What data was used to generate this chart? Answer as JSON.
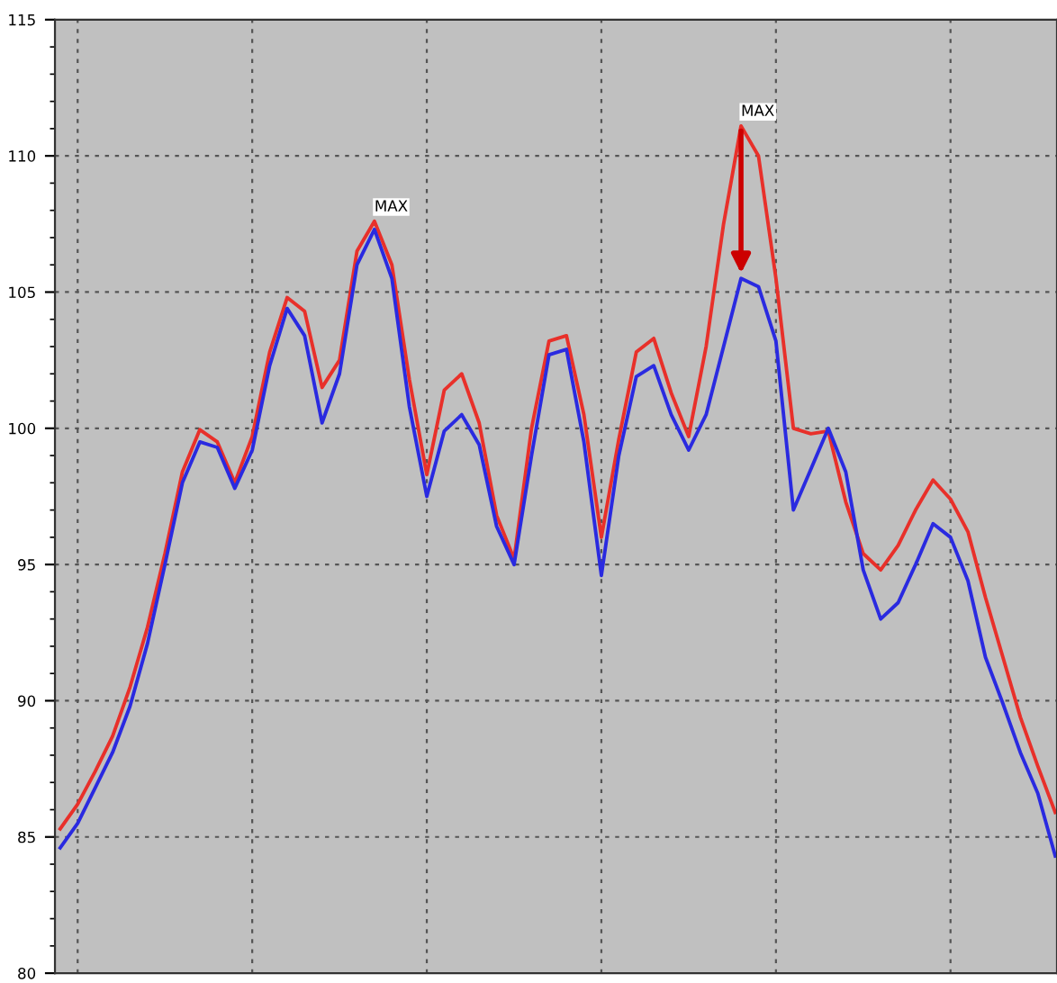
{
  "chart_data": {
    "type": "line",
    "categories": [
      null,
      null,
      null,
      null,
      null,
      null,
      null,
      null,
      null,
      null,
      null,
      null,
      null,
      null,
      null,
      null,
      null,
      null,
      null,
      null,
      null,
      null,
      null,
      null,
      null,
      null,
      null,
      null,
      null,
      null,
      null,
      null,
      null,
      null,
      null,
      null,
      null,
      null,
      null,
      null,
      null,
      null,
      null,
      null,
      null,
      null,
      null,
      null,
      null,
      null,
      null,
      null,
      null,
      null,
      null,
      null,
      null,
      null
    ],
    "series": [
      {
        "color": "#e8302a",
        "values": [
          85.3,
          86.2,
          87.4,
          88.7,
          90.5,
          92.7,
          95.4,
          98.4,
          99.95,
          99.5,
          98.0,
          99.7,
          102.8,
          104.8,
          104.3,
          101.5,
          102.5,
          106.5,
          107.6,
          106.0,
          101.8,
          98.3,
          101.4,
          102.0,
          100.2,
          96.8,
          95.2,
          100.0,
          103.2,
          103.4,
          100.5,
          96.0,
          99.6,
          102.8,
          103.3,
          101.3,
          99.7,
          103.0,
          107.5,
          111.1,
          110.0,
          105.5,
          100.0,
          99.8,
          99.9,
          97.3,
          95.4,
          94.8,
          95.7,
          97.0,
          98.1,
          97.4,
          96.2,
          93.8,
          91.6,
          89.4,
          87.6,
          85.9
        ]
      },
      {
        "color": "#2a2ae0",
        "values": [
          84.6,
          85.5,
          86.8,
          88.1,
          89.8,
          92.1,
          95.0,
          98.0,
          99.5,
          99.3,
          97.8,
          99.2,
          102.3,
          104.4,
          103.4,
          100.2,
          102.0,
          106.0,
          107.3,
          105.5,
          100.8,
          97.5,
          99.9,
          100.5,
          99.4,
          96.4,
          95.0,
          99.0,
          102.7,
          102.9,
          99.5,
          94.6,
          99.0,
          101.9,
          102.3,
          100.5,
          99.2,
          100.5,
          103.0,
          105.5,
          105.2,
          103.2,
          97.0,
          98.5,
          100.0,
          98.4,
          94.8,
          93.0,
          93.6,
          95.0,
          96.5,
          96.0,
          94.4,
          91.6,
          89.9,
          88.1,
          86.6,
          84.3
        ]
      }
    ],
    "annotations": [
      "MAX",
      "MAX"
    ],
    "ylim": [
      80,
      115
    ],
    "yticks": [
      80,
      85,
      90,
      95,
      100,
      105,
      110,
      115
    ],
    "grid": true,
    "marker": "none",
    "line_style": "solid"
  }
}
